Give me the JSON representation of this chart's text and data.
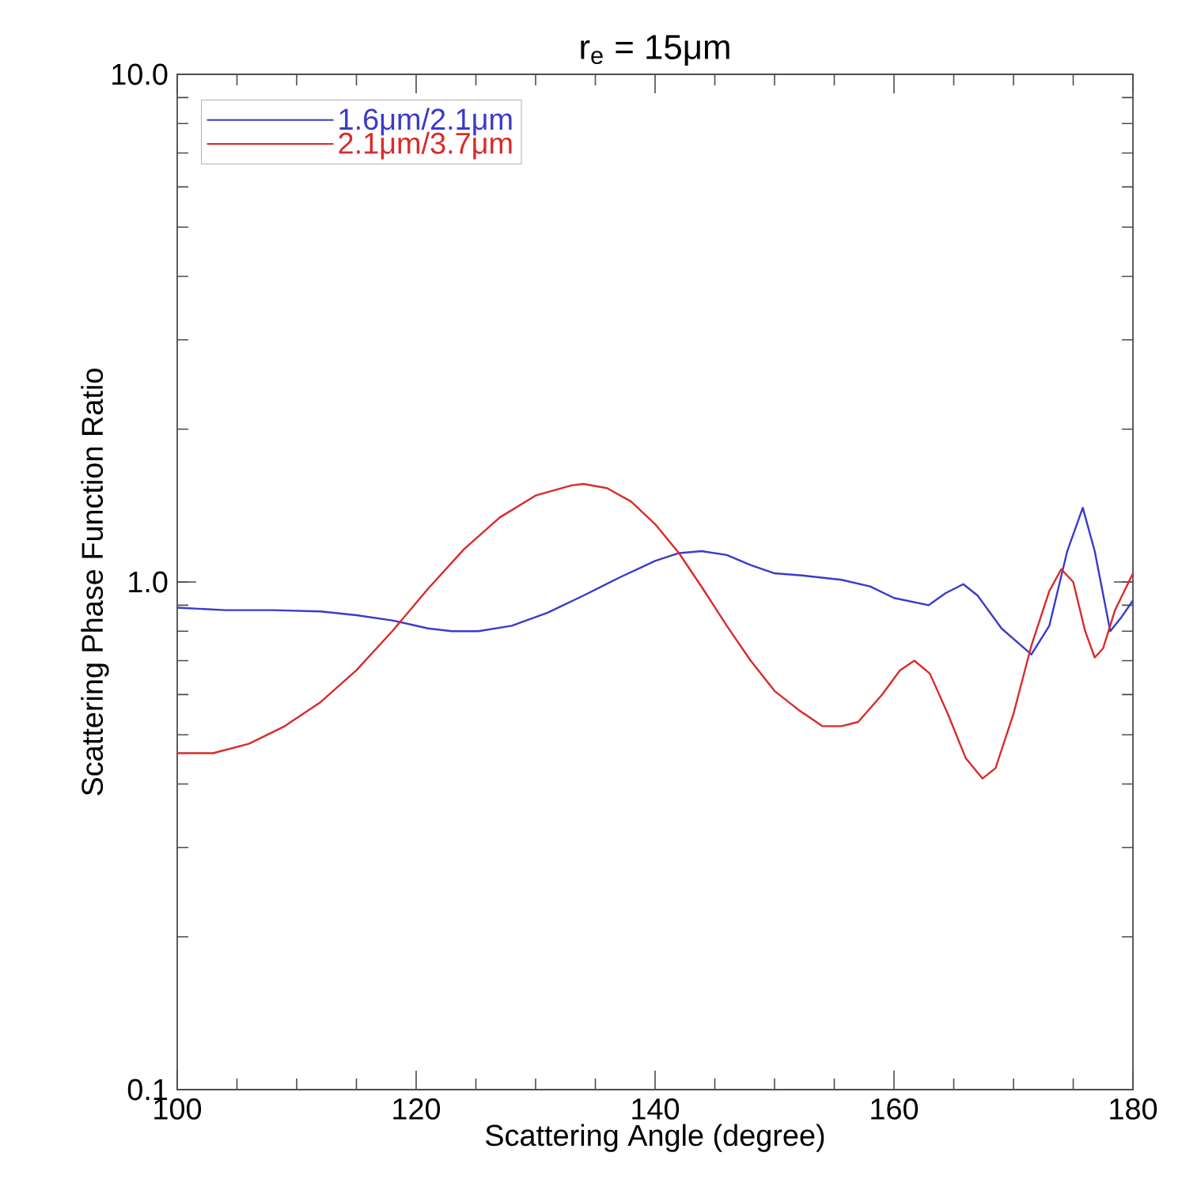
{
  "chart_data": {
    "type": "line",
    "title": "r$_{e}$ = 15μm",
    "xlabel": "Scattering Angle (degree)",
    "ylabel": "Scattering Phase Function Ratio",
    "log": "y",
    "xlim": [
      100,
      180
    ],
    "ylim": [
      0.1,
      10
    ],
    "xticks": [
      100,
      120,
      140,
      160,
      180
    ],
    "yticks": [
      {
        "value": 0.1,
        "label": "0.1"
      },
      {
        "value": 1,
        "label": "1.0"
      },
      {
        "value": 10,
        "label": "10.0"
      }
    ],
    "legend": "top left",
    "grid": false,
    "marker": "none",
    "line_style": "solid",
    "series": [
      {
        "name": "1.6μm/2.1μm",
        "color": "#3a3acc",
        "x": [
          100,
          104,
          108,
          112,
          115,
          118,
          121,
          123,
          125.2,
          128,
          131,
          134,
          137,
          140,
          142,
          143.9,
          146,
          148,
          150,
          152.3,
          155.6,
          158,
          160,
          162.9,
          164.3,
          165.8,
          167,
          169,
          171.5,
          173,
          174.5,
          175.8,
          176.8,
          178.1,
          179,
          180
        ],
        "values": [
          0.89,
          0.88,
          0.88,
          0.875,
          0.86,
          0.84,
          0.81,
          0.8,
          0.8,
          0.82,
          0.87,
          0.94,
          1.02,
          1.1,
          1.14,
          1.15,
          1.13,
          1.08,
          1.04,
          1.03,
          1.01,
          0.98,
          0.93,
          0.9,
          0.95,
          0.99,
          0.94,
          0.81,
          0.72,
          0.82,
          1.15,
          1.4,
          1.15,
          0.8,
          0.85,
          0.92
        ]
      },
      {
        "name": "2.1μm/3.7μm",
        "color": "#d92b2b",
        "x": [
          100,
          103,
          106,
          109,
          112,
          115,
          118,
          121,
          124,
          127,
          130,
          133,
          134,
          136,
          138,
          140,
          142,
          144,
          146,
          148,
          150,
          152,
          154,
          155.6,
          157,
          159,
          160.5,
          161.7,
          163,
          164.5,
          166,
          167.4,
          168.5,
          170,
          171.5,
          173,
          174,
          175,
          176,
          176.8,
          177.5,
          178.5,
          180
        ],
        "values": [
          0.46,
          0.46,
          0.48,
          0.52,
          0.58,
          0.67,
          0.8,
          0.97,
          1.16,
          1.34,
          1.48,
          1.55,
          1.56,
          1.53,
          1.44,
          1.3,
          1.14,
          0.97,
          0.82,
          0.7,
          0.61,
          0.56,
          0.52,
          0.52,
          0.53,
          0.6,
          0.67,
          0.7,
          0.66,
          0.55,
          0.45,
          0.41,
          0.43,
          0.55,
          0.75,
          0.96,
          1.06,
          1.0,
          0.8,
          0.71,
          0.74,
          0.88,
          1.04
        ]
      }
    ]
  }
}
